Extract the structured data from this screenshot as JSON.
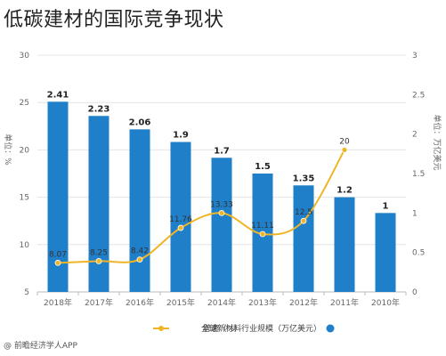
{
  "title": "低碳建材的国际竞争现状",
  "chart_data": {
    "type": "bar",
    "categories": [
      "2018年",
      "2017年",
      "2016年",
      "2015年",
      "2014年",
      "2013年",
      "2012年",
      "2011年",
      "2010年"
    ],
    "series": [
      {
        "name": "全球新材料行业规模（万亿美元）",
        "type": "bar",
        "axis": "right",
        "values": [
          2.41,
          2.23,
          2.06,
          1.9,
          1.7,
          1.5,
          1.35,
          1.2,
          1
        ],
        "labels": [
          "2.41",
          "2.23",
          "2.06",
          "1.9",
          "1.7",
          "1.5",
          "1.35",
          "1.2",
          "1"
        ],
        "color": "#1f7fc8"
      },
      {
        "name": "增速（%）",
        "type": "line",
        "axis": "left",
        "values": [
          8.07,
          8.25,
          8.42,
          11.76,
          13.33,
          11.11,
          12.5,
          20,
          null
        ],
        "labels": [
          "8.07",
          "8.25",
          "8.42",
          "11.76",
          "13.33",
          "11.11",
          "12.5",
          "20",
          ""
        ],
        "color": "#f0b526"
      }
    ],
    "y_left": {
      "label": "单位：%",
      "ticks": [
        "5",
        "10",
        "15",
        "20",
        "25",
        "30"
      ],
      "lim": [
        5,
        30
      ]
    },
    "y_right": {
      "label": "单位：万亿美元",
      "ticks": [
        "0",
        "0.5",
        "1",
        "1.5",
        "2",
        "2.5",
        "3"
      ],
      "lim": [
        0,
        3
      ]
    },
    "legend_position": "bottom"
  },
  "source": "@ 前瞻经济学人APP"
}
